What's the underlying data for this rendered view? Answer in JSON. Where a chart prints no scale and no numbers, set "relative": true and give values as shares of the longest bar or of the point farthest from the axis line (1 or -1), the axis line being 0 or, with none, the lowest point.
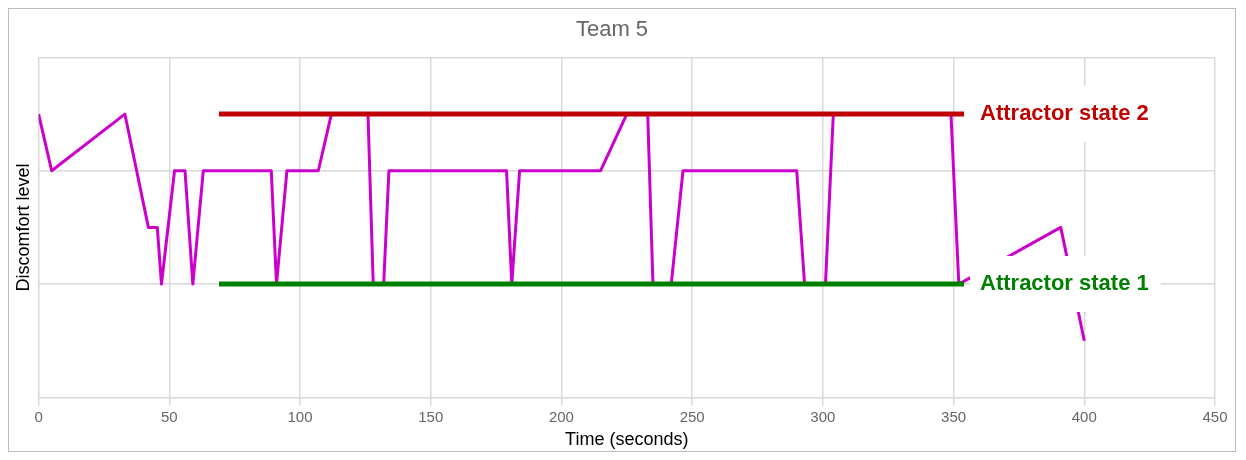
{
  "chart_data": {
    "type": "line",
    "title": "Team 5",
    "xlabel": "Time (seconds)",
    "ylabel": "Discomfort level",
    "relative": true,
    "xlim": [
      0,
      450
    ],
    "xticks": [
      0,
      50,
      100,
      150,
      200,
      250,
      300,
      350,
      400,
      450
    ],
    "grid": true,
    "legend": false,
    "marker": "none",
    "line_style": "solid",
    "series": [
      {
        "color": "#cc00cc",
        "x": [
          0,
          5,
          33,
          42,
          45.4,
          47,
          52,
          56,
          59,
          63,
          89,
          91,
          95,
          107,
          112,
          126,
          128,
          132,
          134,
          179,
          181,
          184,
          215,
          225,
          233,
          235,
          242,
          246.5,
          290,
          293,
          301,
          304,
          349,
          352,
          391,
          400
        ],
        "values": [
          1,
          0.8,
          1,
          0.6,
          0.6,
          0.4,
          0.8,
          0.8,
          0.4,
          0.8,
          0.8,
          0.4,
          0.8,
          0.8,
          1,
          1,
          0.4,
          0.4,
          0.8,
          0.8,
          0.4,
          0.8,
          0.8,
          1,
          1,
          0.4,
          0.4,
          0.8,
          0.8,
          0.4,
          0.4,
          1,
          1,
          0.4,
          0.6,
          0.2
        ]
      },
      {
        "name": "Attractor state 2",
        "color": "#c00000",
        "x": [
          69,
          354
        ],
        "values": [
          1,
          1
        ]
      },
      {
        "name": "Attractor state 1",
        "color": "#008000",
        "x": [
          69,
          354
        ],
        "values": [
          0.4,
          0.4
        ]
      }
    ]
  }
}
